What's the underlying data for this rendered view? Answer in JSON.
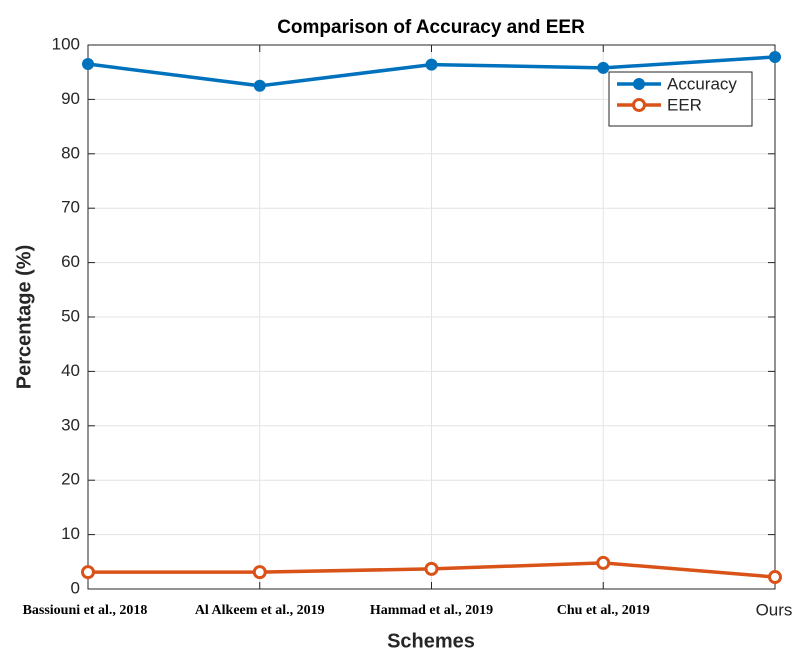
{
  "chart_data": {
    "type": "line",
    "title": "Comparison of Accuracy and EER",
    "x_label": "Schemes",
    "y_label": "Percentage (%)",
    "categories": [
      "Bassiouni et al., 2018",
      "Al Alkeem et al., 2019",
      "Hammad et al., 2019",
      "Chu et al., 2019",
      "Ours"
    ],
    "series": [
      {
        "name": "Accuracy",
        "color": "#0072BD",
        "marker": "filled",
        "values": [
          96.5,
          92.5,
          96.4,
          95.8,
          97.8
        ]
      },
      {
        "name": "EER",
        "color": "#D95319",
        "marker": "open",
        "values": [
          3.1,
          3.1,
          3.7,
          4.8,
          2.2
        ]
      }
    ],
    "ylim": [
      0,
      100
    ],
    "yticks": [
      0,
      10,
      20,
      30,
      40,
      50,
      60,
      70,
      80,
      90,
      100
    ],
    "grid": true,
    "legend": "top-right"
  }
}
